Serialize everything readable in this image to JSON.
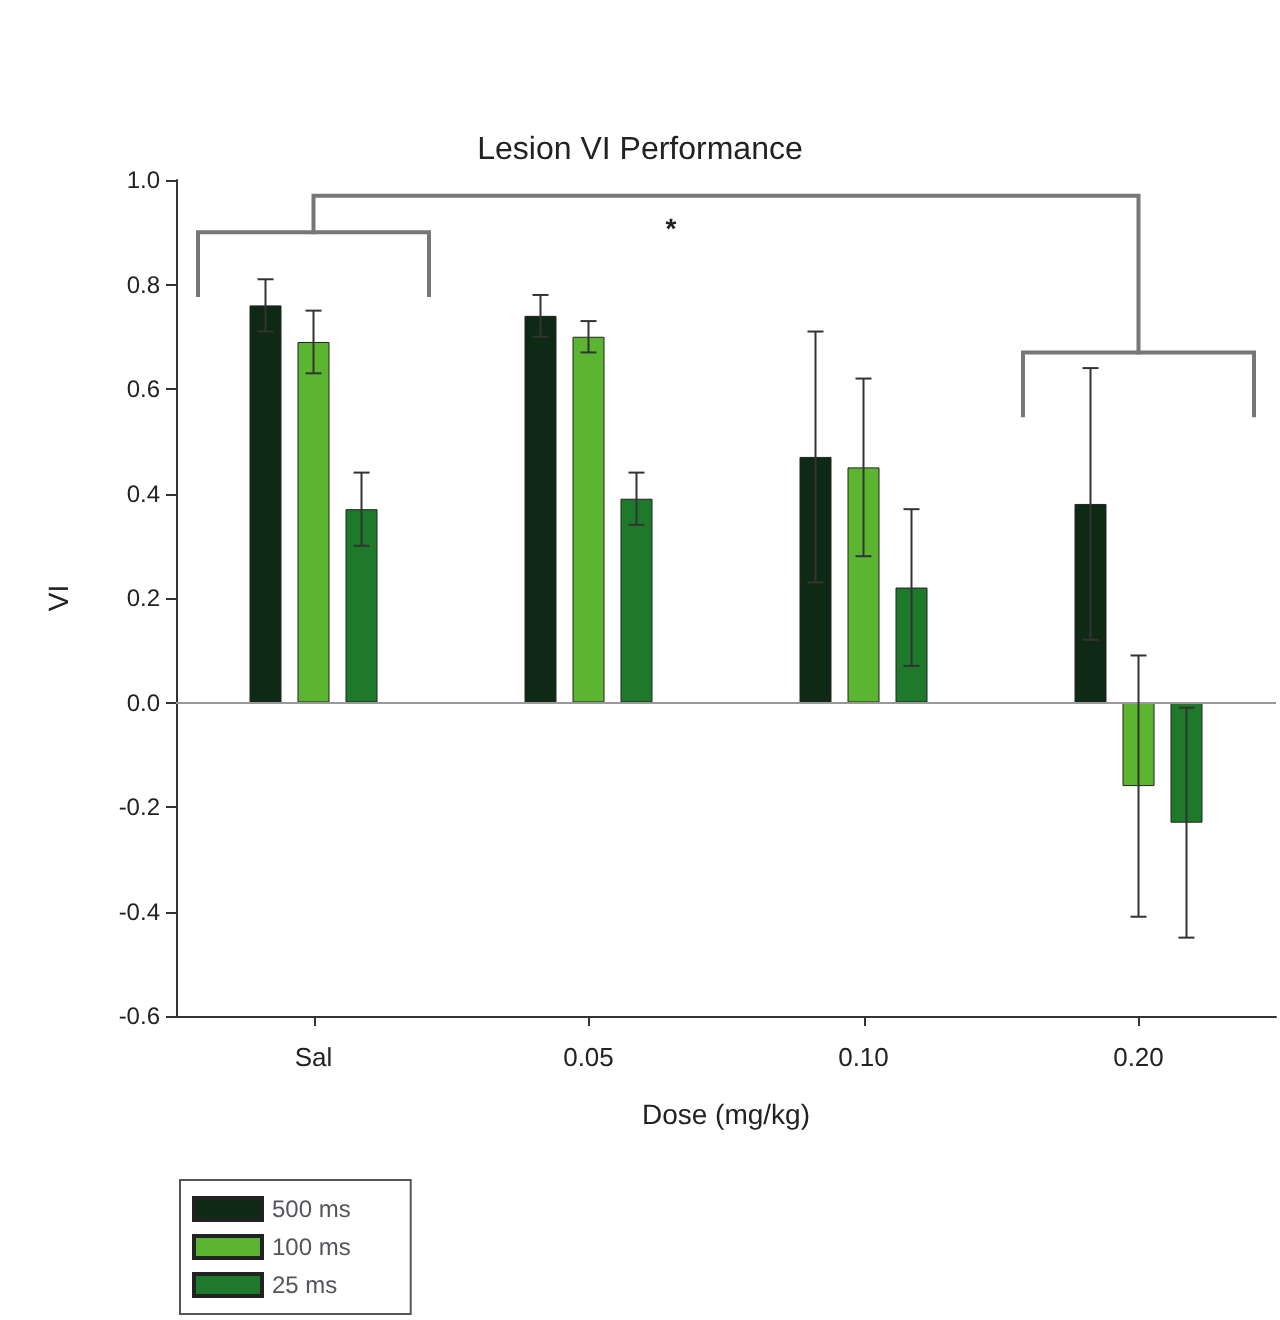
{
  "chart_data": {
    "type": "bar",
    "title": "Lesion VI Performance",
    "xlabel": "Dose (mg/kg)",
    "ylabel": "VI",
    "categories": [
      "Sal",
      "0.05",
      "0.10",
      "0.20"
    ],
    "series": [
      {
        "name": "500 ms",
        "color": "#0f2a14",
        "values": [
          0.76,
          0.74,
          0.47,
          0.38
        ],
        "errors": [
          0.05,
          0.04,
          0.24,
          0.26
        ]
      },
      {
        "name": "100 ms",
        "color": "#5cb531",
        "values": [
          0.69,
          0.7,
          0.45,
          -0.16
        ],
        "errors": [
          0.06,
          0.03,
          0.17,
          0.25
        ]
      },
      {
        "name": "25 ms",
        "color": "#1e7a2a",
        "values": [
          0.37,
          0.39,
          0.22,
          -0.23
        ],
        "errors": [
          0.07,
          0.05,
          0.15,
          0.22
        ]
      }
    ],
    "ylim": [
      -0.6,
      1.0
    ],
    "yticks": [
      {
        "value": -0.6,
        "label": "-0.6"
      },
      {
        "value": -0.4,
        "label": "-0.4"
      },
      {
        "value": -0.2,
        "label": "-0.2"
      },
      {
        "value": 0,
        "label": "0.0"
      },
      {
        "value": 0.2,
        "label": "0.2"
      },
      {
        "value": 0.4,
        "label": "0.4"
      },
      {
        "value": 0.6,
        "label": "0.6"
      },
      {
        "value": 0.8,
        "label": "0.8"
      },
      {
        "value": 1.0,
        "label": "1.0"
      }
    ],
    "ref_lines": [
      {
        "axis": "y",
        "value": 0,
        "color": "#999999"
      }
    ],
    "annotations": [
      "*"
    ],
    "grid": false,
    "legend": "bottom left"
  }
}
